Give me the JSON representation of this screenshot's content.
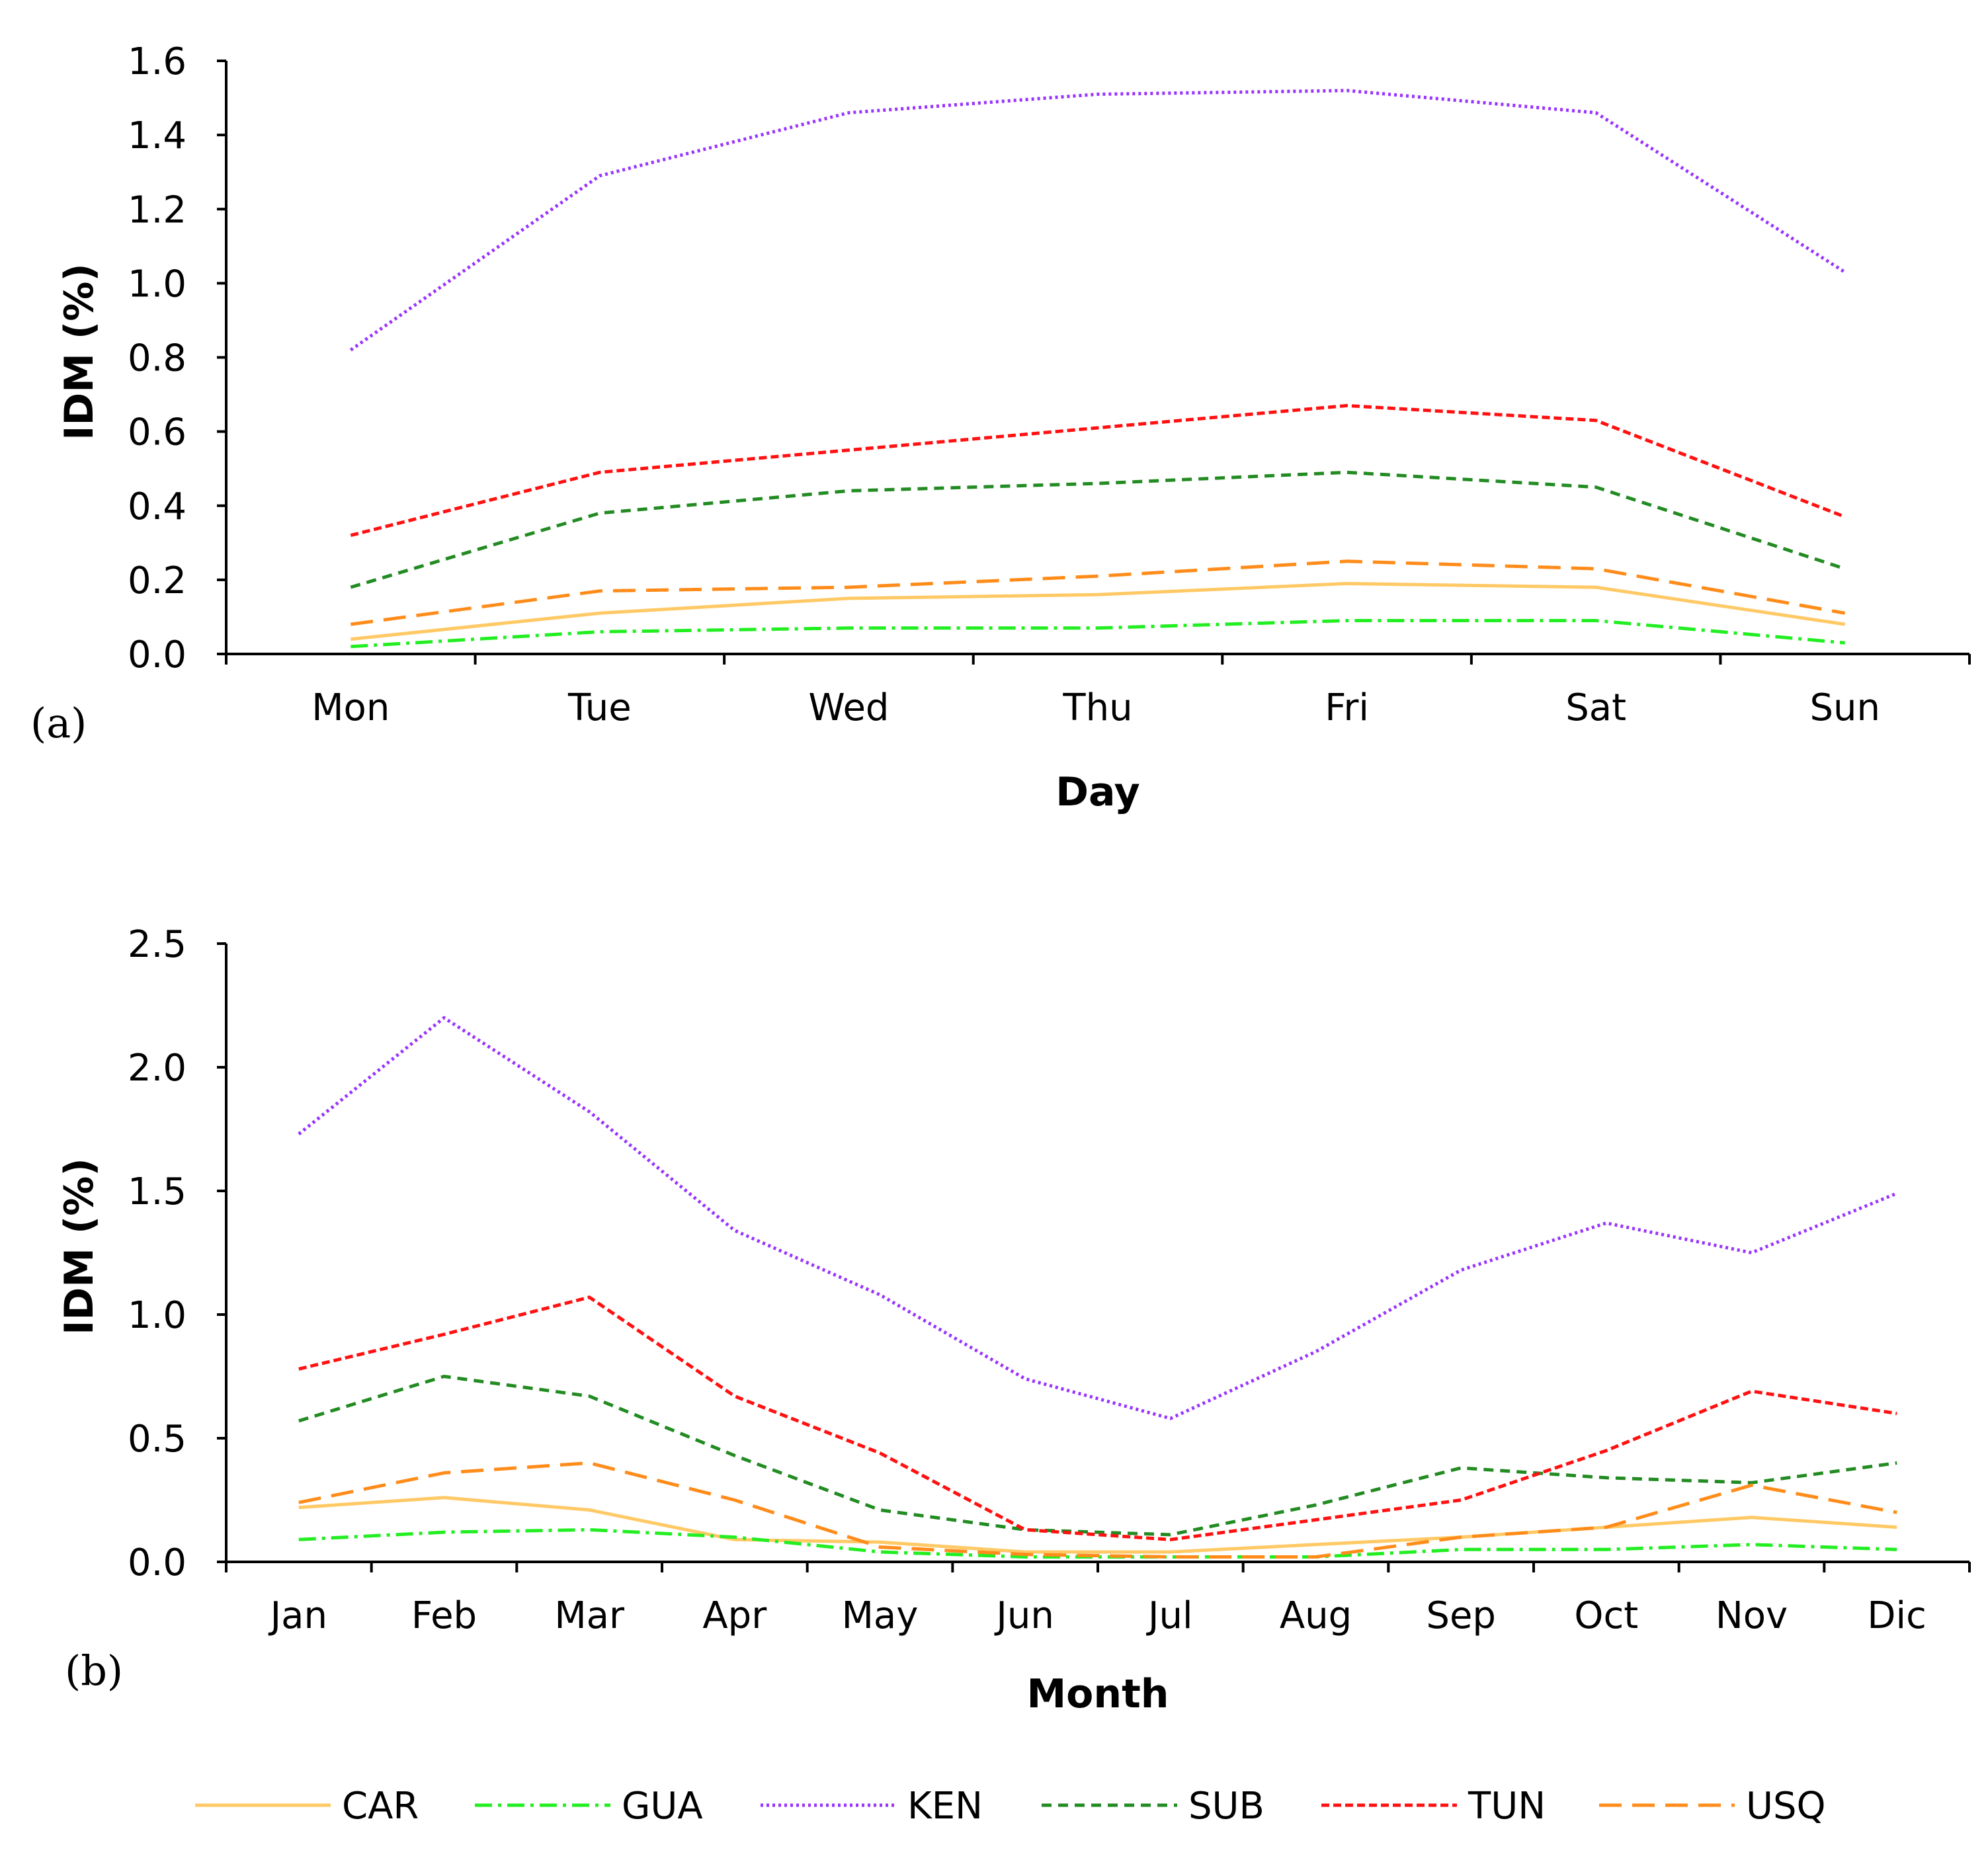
{
  "chart_data": [
    {
      "type": "line",
      "panel_label": "(a)",
      "xlabel": "Day",
      "ylabel": "IDM (%)",
      "categories": [
        "Mon",
        "Tue",
        "Wed",
        "Thu",
        "Fri",
        "Sat",
        "Sun"
      ],
      "ylim": [
        0,
        1.6
      ],
      "yticks": [
        "0.0",
        "0.2",
        "0.4",
        "0.6",
        "0.8",
        "1.0",
        "1.2",
        "1.4",
        "1.6"
      ],
      "series": [
        {
          "name": "CAR",
          "values": [
            0.04,
            0.11,
            0.15,
            0.16,
            0.19,
            0.18,
            0.08
          ]
        },
        {
          "name": "GUA",
          "values": [
            0.02,
            0.06,
            0.07,
            0.07,
            0.09,
            0.09,
            0.03
          ]
        },
        {
          "name": "KEN",
          "values": [
            0.82,
            1.29,
            1.46,
            1.51,
            1.52,
            1.46,
            1.03
          ]
        },
        {
          "name": "SUB",
          "values": [
            0.18,
            0.38,
            0.44,
            0.46,
            0.49,
            0.45,
            0.23
          ]
        },
        {
          "name": "TUN",
          "values": [
            0.32,
            0.49,
            0.55,
            0.61,
            0.67,
            0.63,
            0.37
          ]
        },
        {
          "name": "USQ",
          "values": [
            0.08,
            0.17,
            0.18,
            0.21,
            0.25,
            0.23,
            0.11
          ]
        }
      ]
    },
    {
      "type": "line",
      "panel_label": "(b)",
      "xlabel": "Month",
      "ylabel": "IDM (%)",
      "categories": [
        "Jan",
        "Feb",
        "Mar",
        "Apr",
        "May",
        "Jun",
        "Jul",
        "Aug",
        "Sep",
        "Oct",
        "Nov",
        "Dic"
      ],
      "ylim": [
        0,
        2.5
      ],
      "yticks": [
        "0.0",
        "0.5",
        "1.0",
        "1.5",
        "2.0",
        "2.5"
      ],
      "series": [
        {
          "name": "CAR",
          "values": [
            0.22,
            0.26,
            0.21,
            0.09,
            0.08,
            0.04,
            0.04,
            0.07,
            0.1,
            0.14,
            0.18,
            0.14
          ]
        },
        {
          "name": "GUA",
          "values": [
            0.09,
            0.12,
            0.13,
            0.1,
            0.04,
            0.02,
            0.02,
            0.02,
            0.05,
            0.05,
            0.07,
            0.05
          ]
        },
        {
          "name": "KEN",
          "values": [
            1.73,
            2.2,
            1.82,
            1.34,
            1.08,
            0.74,
            0.58,
            0.85,
            1.18,
            1.37,
            1.25,
            1.49
          ]
        },
        {
          "name": "SUB",
          "values": [
            0.57,
            0.75,
            0.67,
            0.43,
            0.21,
            0.13,
            0.11,
            0.23,
            0.38,
            0.34,
            0.32,
            0.4
          ]
        },
        {
          "name": "TUN",
          "values": [
            0.78,
            0.92,
            1.07,
            0.67,
            0.44,
            0.13,
            0.09,
            0.17,
            0.25,
            0.45,
            0.69,
            0.6
          ]
        },
        {
          "name": "USQ",
          "values": [
            0.24,
            0.36,
            0.4,
            0.25,
            0.06,
            0.03,
            0.02,
            0.02,
            0.1,
            0.14,
            0.31,
            0.2
          ]
        }
      ]
    }
  ],
  "legend": [
    {
      "name": "CAR",
      "color": "#FFC966",
      "dash": "solid"
    },
    {
      "name": "GUA",
      "color": "#22EE22",
      "dash": "dash-dot"
    },
    {
      "name": "KEN",
      "color": "#9933FF",
      "dash": "dotted"
    },
    {
      "name": "SUB",
      "color": "#228B22",
      "dash": "dashed"
    },
    {
      "name": "TUN",
      "color": "#FF1111",
      "dash": "short-dash"
    },
    {
      "name": "USQ",
      "color": "#FF8C1A",
      "dash": "long-dash"
    }
  ]
}
